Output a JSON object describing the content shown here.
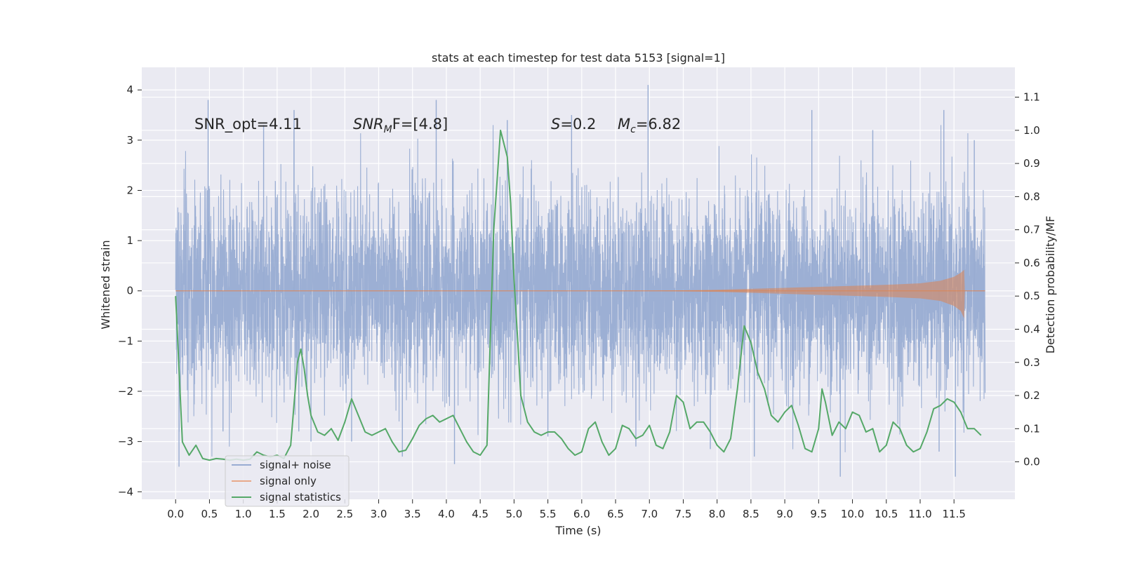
{
  "chart_data": {
    "type": "line",
    "title": "stats at each timestep for test data 5153 [signal=1]",
    "xlabel": "Time (s)",
    "ylabel_left": "Whitened strain",
    "ylabel_right": "Detection probability/MF",
    "xlim": [
      -0.5,
      12.4
    ],
    "ylim_left": [
      -4.15,
      4.45
    ],
    "ylim_right": [
      -0.113,
      1.19
    ],
    "x_ticks": [
      0.0,
      0.5,
      1.0,
      1.5,
      2.0,
      2.5,
      3.0,
      3.5,
      4.0,
      4.5,
      5.0,
      5.5,
      6.0,
      6.5,
      7.0,
      7.5,
      8.0,
      8.5,
      9.0,
      9.5,
      10.0,
      10.5,
      11.0,
      11.5
    ],
    "x_tick_labels": [
      "0.0",
      "0.5",
      "1.0",
      "1.5",
      "2.0",
      "2.5",
      "3.0",
      "3.5",
      "4.0",
      "4.5",
      "5.0",
      "5.5",
      "6.0",
      "6.5",
      "7.0",
      "7.5",
      "8.0",
      "8.5",
      "9.0",
      "9.5",
      "10.0",
      "10.5",
      "11.0",
      "11.5"
    ],
    "y_left_ticks": [
      4,
      3,
      2,
      1,
      0,
      -1,
      -2,
      -3,
      -4
    ],
    "y_left_tick_labels": [
      "4",
      "3",
      "2",
      "1",
      "0",
      "−1",
      "−2",
      "−3",
      "−4"
    ],
    "y_right_ticks": [
      1.1,
      1.0,
      0.9,
      0.8,
      0.7,
      0.6,
      0.5,
      0.4,
      0.3,
      0.2,
      0.1,
      0.0
    ],
    "y_right_tick_labels": [
      "1.1",
      "1.0",
      "0.9",
      "0.8",
      "0.7",
      "0.6",
      "0.5",
      "0.4",
      "0.3",
      "0.2",
      "0.1",
      "0.0"
    ],
    "grid": true,
    "colors": {
      "background": "#eaeaf2",
      "grid": "#ffffff",
      "noise": "#98acd2",
      "signal": "#dd8452",
      "stats": "#55a868"
    },
    "annotations": {
      "snr_opt": "SNR_opt=4.11",
      "snr_mf_sym": "SNR",
      "snr_mf_sub": "M",
      "snr_mf_rest": "F=[4.8]",
      "s_sym": "S",
      "s_rest": "=0.2",
      "mc_sym": "M",
      "mc_sub": "c",
      "mc_rest": "=6.82"
    },
    "legend": {
      "location": "lower-left",
      "entries": [
        "signal+ noise",
        "signal only",
        "signal statistics"
      ]
    },
    "series": [
      {
        "name": "signal+ noise",
        "axis": "left",
        "kind": "dense-noise",
        "x_range": [
          0.0,
          11.96
        ],
        "std": 0.95,
        "seed": 5153,
        "spikes": [
          {
            "x": 0.05,
            "y": -3.5
          },
          {
            "x": 0.48,
            "y": 3.8
          },
          {
            "x": 0.7,
            "y": -2.8
          },
          {
            "x": 1.3,
            "y": 3.3
          },
          {
            "x": 1.75,
            "y": 3.6
          },
          {
            "x": 1.82,
            "y": -2.8
          },
          {
            "x": 2.0,
            "y": -3.0
          },
          {
            "x": 2.6,
            "y": -3.0
          },
          {
            "x": 3.35,
            "y": -3.3
          },
          {
            "x": 3.85,
            "y": 3.8
          },
          {
            "x": 4.12,
            "y": -3.45
          },
          {
            "x": 4.9,
            "y": 3.4
          },
          {
            "x": 5.5,
            "y": -2.9
          },
          {
            "x": 5.85,
            "y": 3.5
          },
          {
            "x": 6.8,
            "y": -3.1
          },
          {
            "x": 6.98,
            "y": 4.1
          },
          {
            "x": 7.9,
            "y": -3.15
          },
          {
            "x": 8.55,
            "y": -3.3
          },
          {
            "x": 9.4,
            "y": 3.6
          },
          {
            "x": 9.82,
            "y": -3.7
          },
          {
            "x": 10.3,
            "y": 3.2
          },
          {
            "x": 11.28,
            "y": -3.2
          },
          {
            "x": 11.35,
            "y": 3.6
          },
          {
            "x": 11.52,
            "y": -3.7
          },
          {
            "x": 11.8,
            "y": 3.0
          }
        ]
      },
      {
        "name": "signal only",
        "axis": "left",
        "kind": "chirp-envelope",
        "x": [
          0.0,
          7.0,
          8.0,
          9.0,
          10.0,
          10.5,
          11.0,
          11.3,
          11.5,
          11.6,
          11.65,
          11.66,
          11.7,
          11.96
        ],
        "upper": [
          0.0,
          0.0,
          0.02,
          0.06,
          0.1,
          0.12,
          0.15,
          0.2,
          0.28,
          0.36,
          0.42,
          0.0,
          0.0,
          0.0
        ],
        "lower": [
          0.0,
          0.0,
          -0.02,
          -0.06,
          -0.1,
          -0.12,
          -0.15,
          -0.2,
          -0.3,
          -0.4,
          -0.55,
          0.0,
          0.0,
          0.0
        ]
      },
      {
        "name": "signal statistics",
        "axis": "right",
        "kind": "line",
        "x": [
          0.0,
          0.1,
          0.2,
          0.3,
          0.4,
          0.5,
          0.6,
          0.7,
          0.8,
          0.9,
          1.0,
          1.1,
          1.2,
          1.3,
          1.4,
          1.5,
          1.6,
          1.7,
          1.8,
          1.85,
          1.9,
          1.95,
          2.0,
          2.1,
          2.2,
          2.3,
          2.4,
          2.5,
          2.6,
          2.7,
          2.8,
          2.9,
          3.0,
          3.1,
          3.2,
          3.3,
          3.4,
          3.5,
          3.6,
          3.7,
          3.8,
          3.9,
          4.0,
          4.1,
          4.2,
          4.3,
          4.4,
          4.5,
          4.6,
          4.7,
          4.8,
          4.9,
          4.95,
          5.0,
          5.05,
          5.1,
          5.2,
          5.3,
          5.4,
          5.5,
          5.6,
          5.7,
          5.8,
          5.9,
          6.0,
          6.1,
          6.2,
          6.3,
          6.4,
          6.5,
          6.6,
          6.7,
          6.8,
          6.9,
          7.0,
          7.1,
          7.2,
          7.3,
          7.4,
          7.5,
          7.6,
          7.7,
          7.8,
          7.9,
          8.0,
          8.1,
          8.2,
          8.3,
          8.4,
          8.5,
          8.6,
          8.7,
          8.8,
          8.9,
          9.0,
          9.1,
          9.2,
          9.3,
          9.4,
          9.5,
          9.55,
          9.6,
          9.7,
          9.8,
          9.9,
          10.0,
          10.1,
          10.2,
          10.3,
          10.4,
          10.5,
          10.6,
          10.7,
          10.8,
          10.9,
          11.0,
          11.1,
          11.2,
          11.3,
          11.4,
          11.5,
          11.6,
          11.7,
          11.8,
          11.9
        ],
        "y": [
          0.5,
          0.06,
          0.02,
          0.05,
          0.01,
          0.005,
          0.01,
          0.008,
          0.005,
          0.008,
          0.005,
          0.008,
          0.03,
          0.02,
          0.015,
          0.02,
          0.01,
          0.05,
          0.3,
          0.34,
          0.28,
          0.2,
          0.14,
          0.09,
          0.08,
          0.1,
          0.065,
          0.12,
          0.19,
          0.14,
          0.09,
          0.08,
          0.09,
          0.1,
          0.06,
          0.03,
          0.035,
          0.07,
          0.11,
          0.13,
          0.14,
          0.12,
          0.13,
          0.14,
          0.1,
          0.06,
          0.03,
          0.02,
          0.05,
          0.7,
          1.0,
          0.92,
          0.78,
          0.55,
          0.38,
          0.2,
          0.12,
          0.09,
          0.08,
          0.09,
          0.09,
          0.07,
          0.04,
          0.02,
          0.03,
          0.1,
          0.12,
          0.06,
          0.02,
          0.04,
          0.11,
          0.1,
          0.07,
          0.08,
          0.11,
          0.05,
          0.04,
          0.09,
          0.2,
          0.18,
          0.1,
          0.12,
          0.12,
          0.09,
          0.05,
          0.03,
          0.07,
          0.22,
          0.41,
          0.36,
          0.27,
          0.22,
          0.14,
          0.12,
          0.15,
          0.17,
          0.11,
          0.04,
          0.03,
          0.1,
          0.22,
          0.18,
          0.08,
          0.12,
          0.1,
          0.15,
          0.14,
          0.09,
          0.1,
          0.03,
          0.05,
          0.12,
          0.1,
          0.05,
          0.03,
          0.04,
          0.09,
          0.16,
          0.17,
          0.19,
          0.18,
          0.15,
          0.1,
          0.1,
          0.08
        ]
      }
    ]
  }
}
